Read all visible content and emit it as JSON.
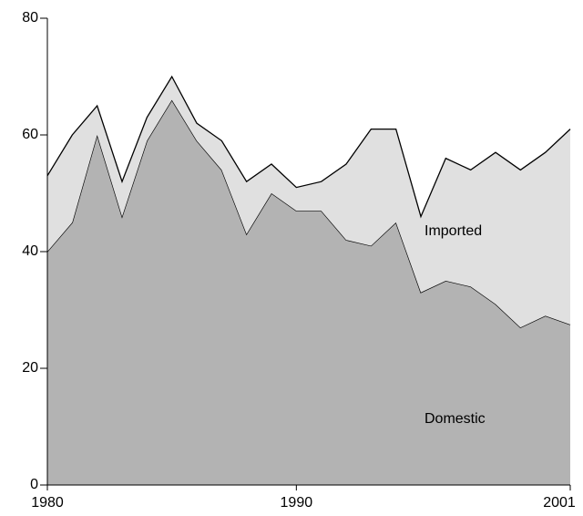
{
  "chart_data": {
    "type": "stacked_area",
    "x": [
      1980,
      1981,
      1982,
      1983,
      1984,
      1985,
      1986,
      1987,
      1988,
      1989,
      1990,
      1991,
      1992,
      1993,
      1994,
      1995,
      1996,
      1997,
      1998,
      1999,
      2000,
      2001
    ],
    "series": [
      {
        "name": "Domestic",
        "color": "#b3b3b3",
        "values": [
          40,
          45,
          60,
          46,
          59,
          66,
          59,
          54,
          43,
          50,
          47,
          47,
          42,
          41,
          45,
          33,
          35,
          34,
          31,
          27,
          29,
          27.5
        ]
      },
      {
        "name": "Imported",
        "color": "#e0e0e0",
        "values": [
          13,
          15,
          5,
          6,
          4,
          4,
          3,
          5,
          9,
          5,
          4,
          5,
          13,
          20,
          16,
          13,
          21,
          20,
          26,
          27,
          28,
          33.5
        ]
      }
    ],
    "xlim": [
      1980,
      2001
    ],
    "xticks": [
      1980,
      1990,
      2001
    ],
    "ylim": [
      0,
      80
    ],
    "yticks": [
      0,
      20,
      40,
      60,
      80
    ]
  }
}
